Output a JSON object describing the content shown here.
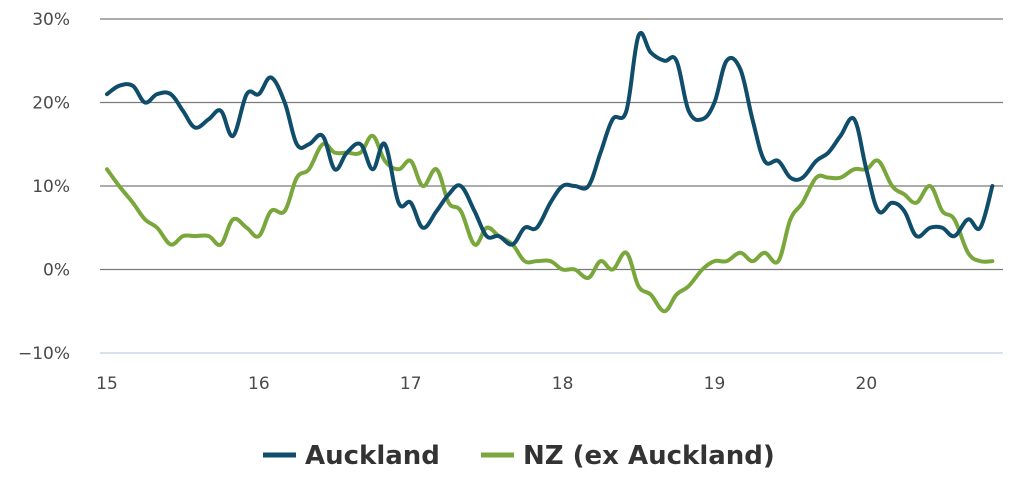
{
  "chart_data": {
    "type": "line",
    "title": "",
    "xlabel": "",
    "ylabel": "",
    "xlim": [
      15,
      20.9
    ],
    "ylim": [
      -10,
      30
    ],
    "y_ticks": [
      -10,
      0,
      10,
      20,
      30
    ],
    "y_tick_labels": [
      "−10%",
      "0%",
      "10%",
      "20%",
      "30%"
    ],
    "x_ticks": [
      15,
      16,
      17,
      18,
      19,
      20
    ],
    "x_tick_labels": [
      "15",
      "16",
      "17",
      "18",
      "19",
      "20"
    ],
    "grid": "horizontal",
    "legend_position": "bottom-center",
    "series": [
      {
        "name": "Auckland",
        "color": "#0f4d6b",
        "points": [
          [
            15.0,
            21
          ],
          [
            15.08,
            22
          ],
          [
            15.17,
            22
          ],
          [
            15.25,
            20
          ],
          [
            15.33,
            21
          ],
          [
            15.42,
            21
          ],
          [
            15.5,
            19
          ],
          [
            15.58,
            17
          ],
          [
            15.67,
            18
          ],
          [
            15.75,
            19
          ],
          [
            15.83,
            16
          ],
          [
            15.92,
            21
          ],
          [
            16.0,
            21
          ],
          [
            16.08,
            23
          ],
          [
            16.17,
            20
          ],
          [
            16.25,
            15
          ],
          [
            16.33,
            15
          ],
          [
            16.42,
            16
          ],
          [
            16.5,
            12
          ],
          [
            16.58,
            14
          ],
          [
            16.67,
            15
          ],
          [
            16.75,
            12
          ],
          [
            16.83,
            15
          ],
          [
            16.92,
            8
          ],
          [
            17.0,
            8
          ],
          [
            17.08,
            5
          ],
          [
            17.17,
            7
          ],
          [
            17.25,
            9
          ],
          [
            17.33,
            10
          ],
          [
            17.42,
            7
          ],
          [
            17.5,
            4
          ],
          [
            17.58,
            4
          ],
          [
            17.67,
            3
          ],
          [
            17.75,
            5
          ],
          [
            17.83,
            5
          ],
          [
            17.92,
            8
          ],
          [
            18.0,
            10
          ],
          [
            18.08,
            10
          ],
          [
            18.17,
            10
          ],
          [
            18.25,
            14
          ],
          [
            18.33,
            18
          ],
          [
            18.42,
            19
          ],
          [
            18.5,
            28
          ],
          [
            18.58,
            26
          ],
          [
            18.67,
            25
          ],
          [
            18.75,
            25
          ],
          [
            18.83,
            19
          ],
          [
            18.92,
            18
          ],
          [
            19.0,
            20
          ],
          [
            19.08,
            25
          ],
          [
            19.17,
            24
          ],
          [
            19.25,
            18
          ],
          [
            19.33,
            13
          ],
          [
            19.42,
            13
          ],
          [
            19.5,
            11
          ],
          [
            19.58,
            11
          ],
          [
            19.67,
            13
          ],
          [
            19.75,
            14
          ],
          [
            19.83,
            16
          ],
          [
            19.92,
            18
          ],
          [
            20.0,
            12
          ],
          [
            20.08,
            7
          ],
          [
            20.17,
            8
          ],
          [
            20.25,
            7
          ],
          [
            20.33,
            4
          ],
          [
            20.42,
            5
          ],
          [
            20.5,
            5
          ],
          [
            20.58,
            4
          ],
          [
            20.67,
            6
          ],
          [
            20.75,
            5
          ],
          [
            20.83,
            10
          ]
        ]
      },
      {
        "name": "NZ (ex Auckland)",
        "color": "#7aa73c",
        "points": [
          [
            15.0,
            12
          ],
          [
            15.08,
            10
          ],
          [
            15.17,
            8
          ],
          [
            15.25,
            6
          ],
          [
            15.33,
            5
          ],
          [
            15.42,
            3
          ],
          [
            15.5,
            4
          ],
          [
            15.58,
            4
          ],
          [
            15.67,
            4
          ],
          [
            15.75,
            3
          ],
          [
            15.83,
            6
          ],
          [
            15.92,
            5
          ],
          [
            16.0,
            4
          ],
          [
            16.08,
            7
          ],
          [
            16.17,
            7
          ],
          [
            16.25,
            11
          ],
          [
            16.33,
            12
          ],
          [
            16.42,
            15
          ],
          [
            16.5,
            14
          ],
          [
            16.58,
            14
          ],
          [
            16.67,
            14
          ],
          [
            16.75,
            16
          ],
          [
            16.83,
            13
          ],
          [
            16.92,
            12
          ],
          [
            17.0,
            13
          ],
          [
            17.08,
            10
          ],
          [
            17.17,
            12
          ],
          [
            17.25,
            8
          ],
          [
            17.33,
            7
          ],
          [
            17.42,
            3
          ],
          [
            17.5,
            5
          ],
          [
            17.58,
            4
          ],
          [
            17.67,
            3
          ],
          [
            17.75,
            1
          ],
          [
            17.83,
            1
          ],
          [
            17.92,
            1
          ],
          [
            18.0,
            0
          ],
          [
            18.08,
            0
          ],
          [
            18.17,
            -1
          ],
          [
            18.25,
            1
          ],
          [
            18.33,
            0
          ],
          [
            18.42,
            2
          ],
          [
            18.5,
            -2
          ],
          [
            18.58,
            -3
          ],
          [
            18.67,
            -5
          ],
          [
            18.75,
            -3
          ],
          [
            18.83,
            -2
          ],
          [
            18.92,
            0
          ],
          [
            19.0,
            1
          ],
          [
            19.08,
            1
          ],
          [
            19.17,
            2
          ],
          [
            19.25,
            1
          ],
          [
            19.33,
            2
          ],
          [
            19.42,
            1
          ],
          [
            19.5,
            6
          ],
          [
            19.58,
            8
          ],
          [
            19.67,
            11
          ],
          [
            19.75,
            11
          ],
          [
            19.83,
            11
          ],
          [
            19.92,
            12
          ],
          [
            20.0,
            12
          ],
          [
            20.08,
            13
          ],
          [
            20.17,
            10
          ],
          [
            20.25,
            9
          ],
          [
            20.33,
            8
          ],
          [
            20.42,
            10
          ],
          [
            20.5,
            7
          ],
          [
            20.58,
            6
          ],
          [
            20.67,
            2
          ],
          [
            20.75,
            1
          ],
          [
            20.83,
            1
          ]
        ]
      }
    ]
  }
}
